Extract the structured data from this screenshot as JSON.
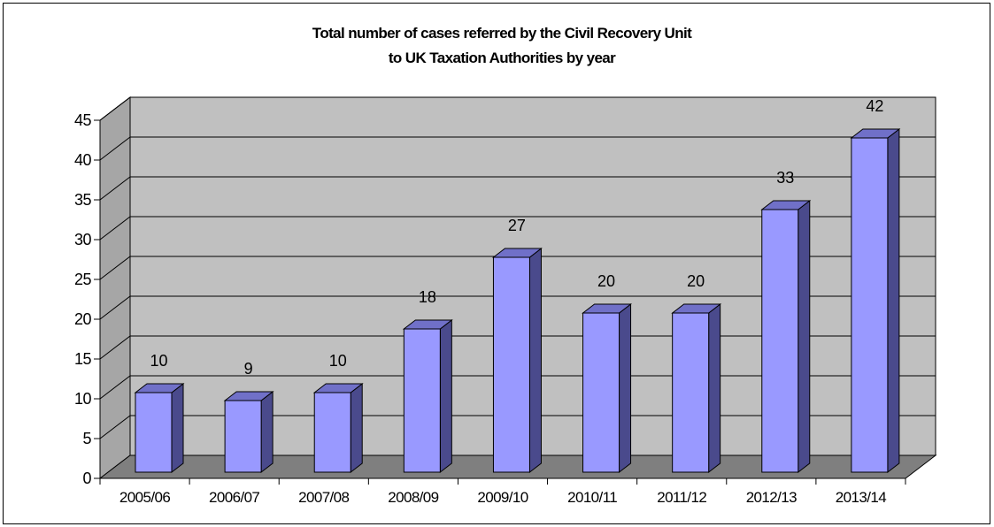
{
  "chart_data": {
    "type": "bar",
    "title_lines": [
      "Total number of cases referred by the Civil Recovery Unit",
      "to UK Taxation Authorities by year"
    ],
    "categories": [
      "2005/06",
      "2006/07",
      "2007/08",
      "2008/09",
      "2009/10",
      "2010/11",
      "2011/12",
      "2012/13",
      "2013/14"
    ],
    "values": [
      10,
      9,
      10,
      18,
      27,
      20,
      20,
      33,
      42
    ],
    "data_labels": [
      "10",
      "9",
      "10",
      "18",
      "27",
      "20",
      "20",
      "33",
      "42"
    ],
    "y_ticks": [
      "0",
      "5",
      "10",
      "15",
      "20",
      "25",
      "30",
      "35",
      "40",
      "45"
    ],
    "ylim": [
      0,
      45
    ],
    "y_step": 5,
    "grid": true,
    "legend": "none",
    "colors": {
      "bar_front": "#9999ff",
      "bar_side": "#4a4a8c",
      "bar_top": "#7070c8",
      "back_wall": "#c0c0c0",
      "side_wall": "#a6a6a6",
      "floor": "#7f7f7f"
    }
  }
}
